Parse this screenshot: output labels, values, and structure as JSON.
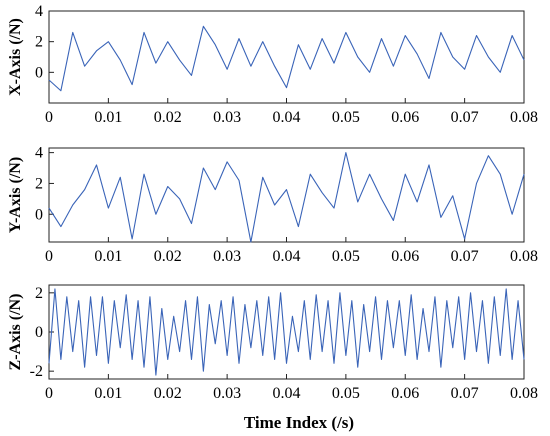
{
  "chart_data": [
    {
      "type": "line",
      "ylabel": "X-Axis (/N)",
      "xlabel": "",
      "xlim": [
        0,
        0.08
      ],
      "ylim": [
        -2,
        4
      ],
      "xticks": [
        0,
        0.01,
        0.02,
        0.03,
        0.04,
        0.05,
        0.06,
        0.07,
        0.08
      ],
      "xticklabels": [
        "0",
        "0.01",
        "0.02",
        "0.03",
        "0.04",
        "0.05",
        "0.06",
        "0.07",
        "0.08"
      ],
      "yticks": [
        0,
        2,
        4
      ],
      "yticklabels": [
        "0",
        "2",
        "4"
      ],
      "series": [
        {
          "color": "#3a64b8",
          "x": [
            0,
            0.002,
            0.004,
            0.006,
            0.008,
            0.01,
            0.012,
            0.014,
            0.016,
            0.018,
            0.02,
            0.022,
            0.024,
            0.026,
            0.028,
            0.03,
            0.032,
            0.034,
            0.036,
            0.038,
            0.04,
            0.042,
            0.044,
            0.046,
            0.048,
            0.05,
            0.052,
            0.054,
            0.056,
            0.058,
            0.06,
            0.062,
            0.064,
            0.066,
            0.068,
            0.07,
            0.072,
            0.074,
            0.076,
            0.078,
            0.08
          ],
          "y": [
            -0.5,
            -1.2,
            2.6,
            0.4,
            1.4,
            2.0,
            0.8,
            -0.8,
            2.6,
            0.6,
            2.0,
            0.8,
            -0.2,
            3.0,
            1.8,
            0.2,
            2.2,
            0.4,
            2.0,
            0.4,
            -1.0,
            1.8,
            0.2,
            2.2,
            0.6,
            2.6,
            1.0,
            0.0,
            2.2,
            0.4,
            2.4,
            1.2,
            -0.4,
            2.6,
            1.0,
            0.2,
            2.4,
            1.0,
            0.0,
            2.4,
            0.8
          ]
        }
      ]
    },
    {
      "type": "line",
      "ylabel": "Y-Axis (/N)",
      "xlabel": "",
      "xlim": [
        0,
        0.08
      ],
      "ylim": [
        -1.8,
        4.3
      ],
      "xticks": [
        0,
        0.01,
        0.02,
        0.03,
        0.04,
        0.05,
        0.06,
        0.07,
        0.08
      ],
      "xticklabels": [
        "0",
        "0.01",
        "0.02",
        "0.03",
        "0.04",
        "0.05",
        "0.06",
        "0.07",
        "0.08"
      ],
      "yticks": [
        0,
        2,
        4
      ],
      "yticklabels": [
        "0",
        "2",
        "4"
      ],
      "series": [
        {
          "color": "#3a64b8",
          "x": [
            0,
            0.002,
            0.004,
            0.006,
            0.008,
            0.01,
            0.012,
            0.014,
            0.016,
            0.018,
            0.02,
            0.022,
            0.024,
            0.026,
            0.028,
            0.03,
            0.032,
            0.034,
            0.036,
            0.038,
            0.04,
            0.042,
            0.044,
            0.046,
            0.048,
            0.05,
            0.052,
            0.054,
            0.056,
            0.058,
            0.06,
            0.062,
            0.064,
            0.066,
            0.068,
            0.07,
            0.072,
            0.074,
            0.076,
            0.078,
            0.08
          ],
          "y": [
            0.4,
            -0.8,
            0.6,
            1.6,
            3.2,
            0.4,
            2.4,
            -1.6,
            2.6,
            0.0,
            1.8,
            1.0,
            -0.6,
            3.0,
            1.6,
            3.4,
            2.2,
            -1.8,
            2.4,
            0.6,
            1.6,
            -0.8,
            2.6,
            1.4,
            0.4,
            4.0,
            0.8,
            2.6,
            1.0,
            -0.4,
            2.6,
            0.8,
            3.2,
            -0.2,
            1.2,
            -1.6,
            2.0,
            3.8,
            2.6,
            0.0,
            2.6
          ]
        }
      ]
    },
    {
      "type": "line",
      "ylabel": "Z-Axis (/N)",
      "xlabel": "Time Index (/s)",
      "xlim": [
        0,
        0.08
      ],
      "ylim": [
        -2.4,
        2.4
      ],
      "xticks": [
        0,
        0.01,
        0.02,
        0.03,
        0.04,
        0.05,
        0.06,
        0.07,
        0.08
      ],
      "xticklabels": [
        "0",
        "0.01",
        "0.02",
        "0.03",
        "0.04",
        "0.05",
        "0.06",
        "0.07",
        "0.08"
      ],
      "yticks": [
        -2,
        0,
        2
      ],
      "yticklabels": [
        "-2",
        "0",
        "2"
      ],
      "series": [
        {
          "color": "#3a64b8",
          "x": [
            0,
            0.001,
            0.002,
            0.003,
            0.004,
            0.005,
            0.006,
            0.007,
            0.008,
            0.009,
            0.01,
            0.011,
            0.012,
            0.013,
            0.014,
            0.015,
            0.016,
            0.017,
            0.018,
            0.019,
            0.02,
            0.021,
            0.022,
            0.023,
            0.024,
            0.025,
            0.026,
            0.027,
            0.028,
            0.029,
            0.03,
            0.031,
            0.032,
            0.033,
            0.034,
            0.035,
            0.036,
            0.037,
            0.038,
            0.039,
            0.04,
            0.041,
            0.042,
            0.043,
            0.044,
            0.045,
            0.046,
            0.047,
            0.048,
            0.049,
            0.05,
            0.051,
            0.052,
            0.053,
            0.054,
            0.055,
            0.056,
            0.057,
            0.058,
            0.059,
            0.06,
            0.061,
            0.062,
            0.063,
            0.064,
            0.065,
            0.066,
            0.067,
            0.068,
            0.069,
            0.07,
            0.071,
            0.072,
            0.073,
            0.074,
            0.075,
            0.076,
            0.077,
            0.078,
            0.079,
            0.08
          ],
          "y": [
            -1.6,
            2.2,
            -1.4,
            1.8,
            -1.0,
            1.6,
            -1.8,
            1.8,
            -1.2,
            1.8,
            -1.6,
            1.6,
            -0.8,
            1.9,
            -1.4,
            1.6,
            -1.8,
            1.8,
            -2.2,
            1.2,
            -1.4,
            0.8,
            -1.0,
            1.6,
            -1.4,
            1.8,
            -2.0,
            1.4,
            -0.6,
            1.6,
            -1.2,
            1.8,
            -1.6,
            1.4,
            -0.8,
            1.6,
            -1.2,
            1.8,
            -1.4,
            2.0,
            -1.6,
            0.8,
            -1.0,
            1.6,
            -1.4,
            1.9,
            -1.0,
            1.6,
            -1.6,
            2.0,
            -1.2,
            1.6,
            -1.8,
            1.4,
            -1.0,
            1.8,
            -1.4,
            1.6,
            -0.8,
            1.6,
            -1.2,
            1.9,
            -1.4,
            1.2,
            -1.0,
            1.8,
            -1.8,
            1.6,
            -0.8,
            1.8,
            -1.4,
            2.0,
            -1.0,
            1.6,
            -1.6,
            1.8,
            -1.2,
            2.2,
            -1.4,
            1.6,
            -1.4
          ]
        }
      ]
    }
  ]
}
